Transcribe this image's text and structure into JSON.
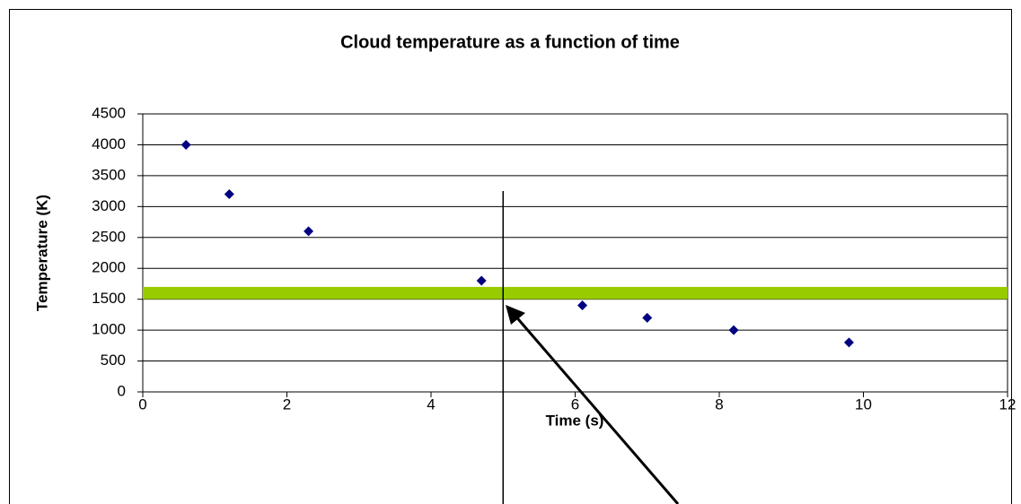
{
  "chart_data": {
    "type": "scatter",
    "title": "Cloud temperature as a function of time",
    "x_label": "Time (s)",
    "y_label": "Temperature (K)",
    "series": [
      {
        "color": "#000080",
        "x": [
          0.6,
          1.2,
          2.3,
          4.7,
          6.1,
          7.0,
          8.2,
          9.8
        ],
        "values": [
          4000,
          3200,
          2600,
          1800,
          1400,
          1200,
          1000,
          800
        ]
      }
    ],
    "xlim": [
      0,
      12
    ],
    "xticks": [
      0,
      2,
      4,
      6,
      8,
      10,
      12
    ],
    "ylim": [
      0,
      4500
    ],
    "yticks": [
      0,
      500,
      1000,
      1500,
      2000,
      2500,
      3000,
      3500,
      4000,
      4500
    ],
    "grid": true,
    "band": [
      1500,
      1700
    ],
    "band_color": "#99cc00",
    "vline": 5
  }
}
